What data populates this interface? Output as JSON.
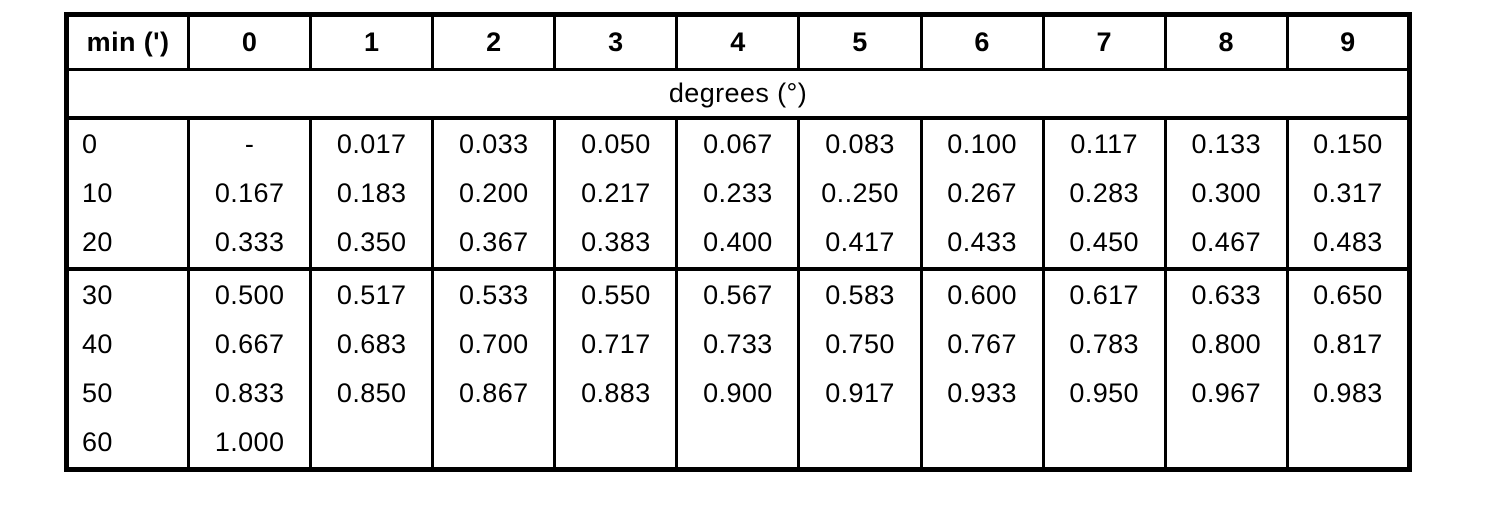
{
  "table": {
    "corner_label": "min (')",
    "minute_headers": [
      "0",
      "1",
      "2",
      "3",
      "4",
      "5",
      "6",
      "7",
      "8",
      "9"
    ],
    "span_label": "degrees (°)",
    "blocks": [
      {
        "rows": [
          {
            "label": "0",
            "values": [
              "-",
              "0.017",
              "0.033",
              "0.050",
              "0.067",
              "0.083",
              "0.100",
              "0.117",
              "0.133",
              "0.150"
            ]
          },
          {
            "label": "10",
            "values": [
              "0.167",
              "0.183",
              "0.200",
              "0.217",
              "0.233",
              "0..250",
              "0.267",
              "0.283",
              "0.300",
              "0.317"
            ]
          },
          {
            "label": "20",
            "values": [
              "0.333",
              "0.350",
              "0.367",
              "0.383",
              "0.400",
              "0.417",
              "0.433",
              "0.450",
              "0.467",
              "0.483"
            ]
          }
        ]
      },
      {
        "rows": [
          {
            "label": "30",
            "values": [
              "0.500",
              "0.517",
              "0.533",
              "0.550",
              "0.567",
              "0.583",
              "0.600",
              "0.617",
              "0.633",
              "0.650"
            ]
          },
          {
            "label": "40",
            "values": [
              "0.667",
              "0.683",
              "0.700",
              "0.717",
              "0.733",
              "0.750",
              "0.767",
              "0.783",
              "0.800",
              "0.817"
            ]
          },
          {
            "label": "50",
            "values": [
              "0.833",
              "0.850",
              "0.867",
              "0.883",
              "0.900",
              "0.917",
              "0.933",
              "0.950",
              "0.967",
              "0.983"
            ]
          },
          {
            "label": "60",
            "values": [
              "1.000",
              "",
              "",
              "",
              "",
              "",
              "",
              "",
              "",
              ""
            ]
          }
        ]
      }
    ]
  }
}
